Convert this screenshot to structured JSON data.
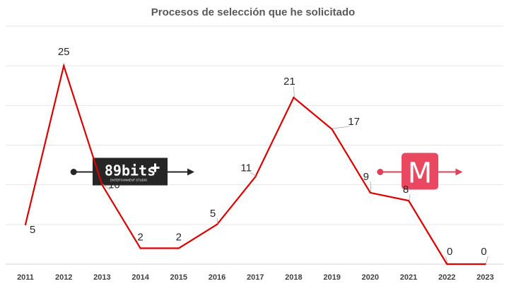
{
  "chart_data": {
    "type": "line",
    "title": "Procesos de selección que he solicitado",
    "categories": [
      "2011",
      "2012",
      "2013",
      "2014",
      "2015",
      "2016",
      "2017",
      "2018",
      "2019",
      "2020",
      "2021",
      "2022",
      "2023"
    ],
    "series": [
      {
        "values": [
          5,
          25,
          10,
          2,
          2,
          5,
          11,
          21,
          17,
          9,
          8,
          0,
          0
        ]
      }
    ],
    "ylim": [
      0,
      30
    ],
    "grid": true,
    "line_color": "#e00000",
    "annotations": [
      {
        "logo": "89bits-logo",
        "text": "89bits",
        "subtext": "ENTERTAINMENT STUDIO",
        "spans": [
          "2012",
          "2016"
        ],
        "level": 15,
        "arrow_color": "#262626"
      },
      {
        "logo": "m-app-logo",
        "text": "M",
        "spans": [
          "2020",
          "2023"
        ],
        "level": 15,
        "arrow_color": "#e0405a"
      }
    ]
  }
}
